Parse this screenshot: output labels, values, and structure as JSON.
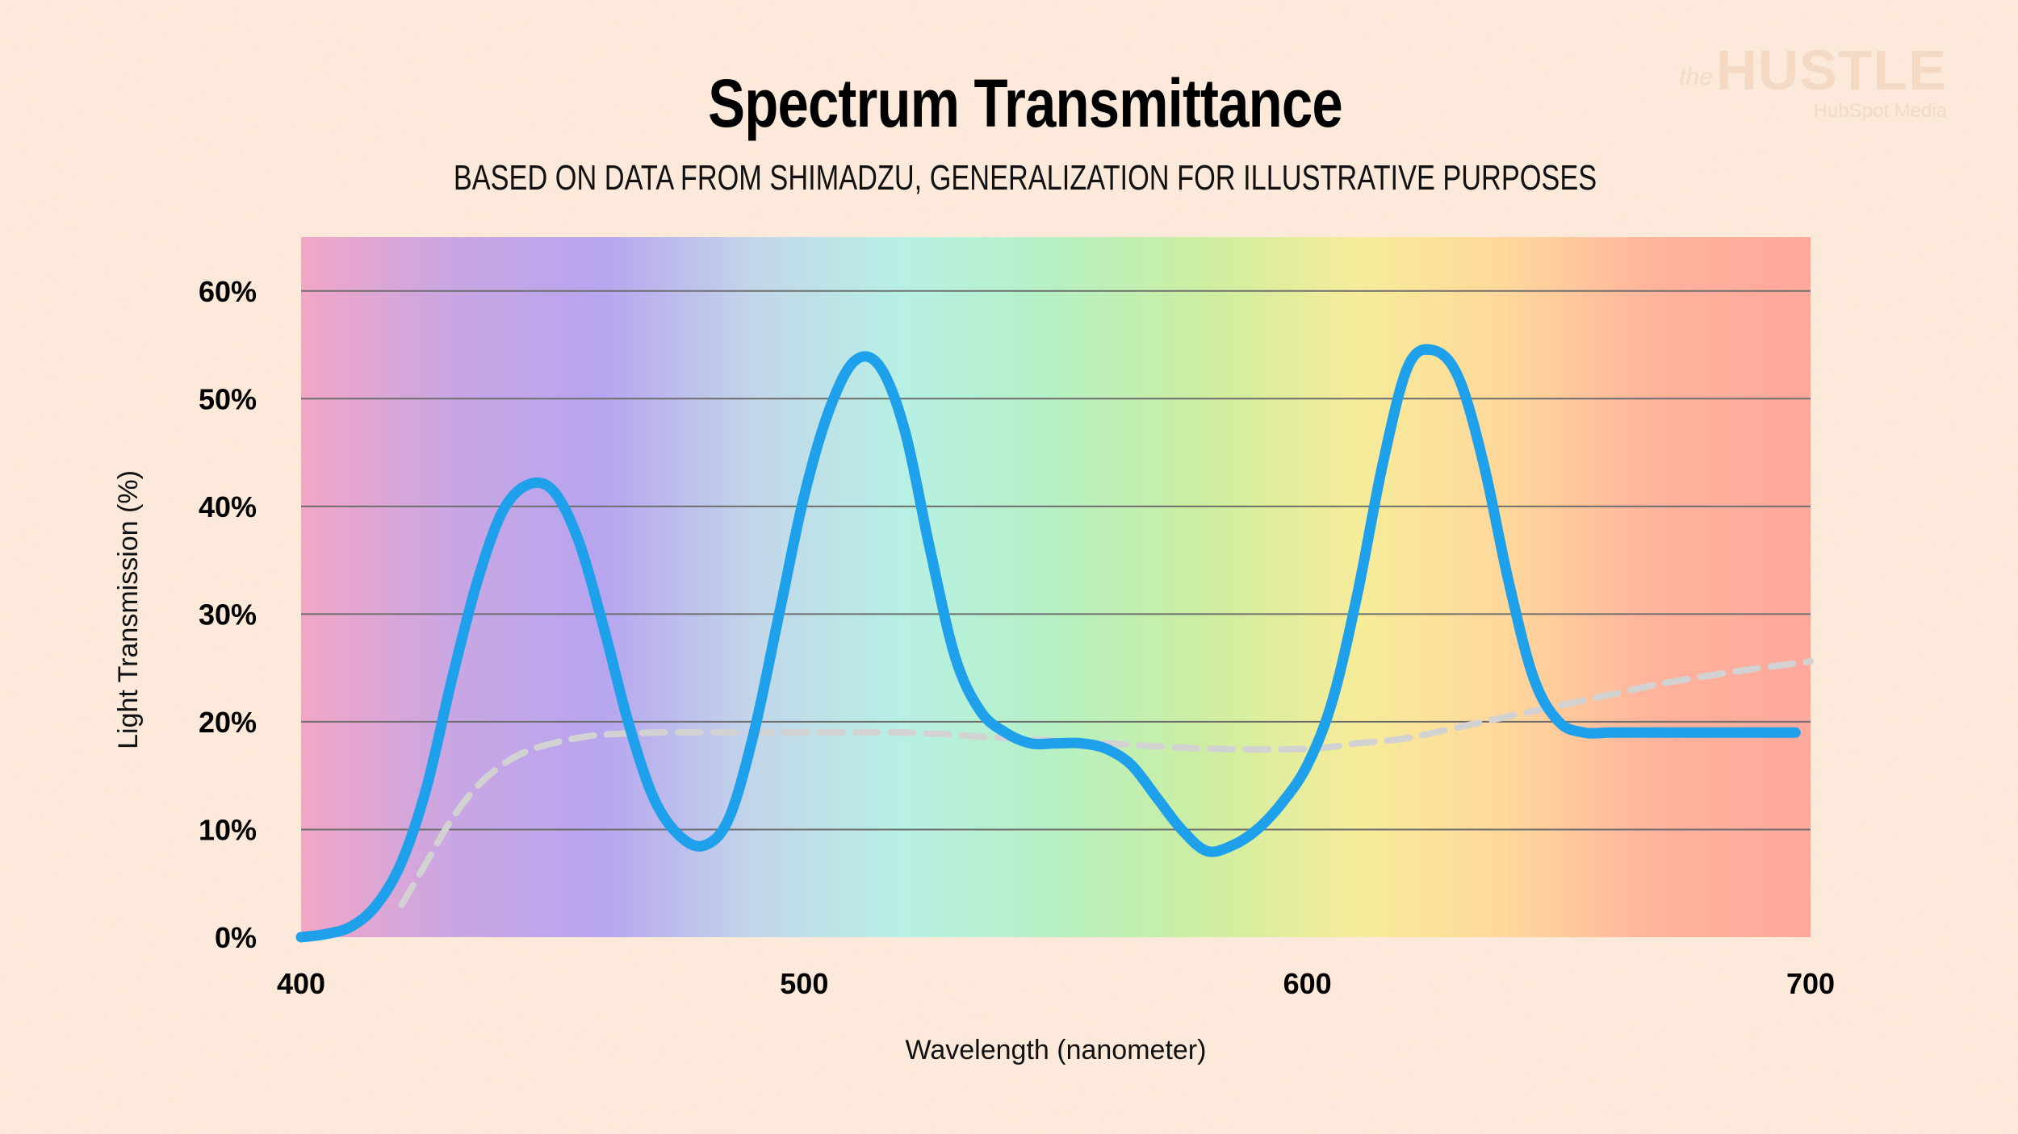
{
  "header": {
    "title": "Spectrum Transmittance",
    "subtitle": "BASED ON DATA FROM SHIMADZU, GENERALIZATION FOR ILLUSTRATIVE PURPOSES"
  },
  "logo": {
    "the": "the",
    "name": "HUSTLE",
    "tagline": "HubSpot Media"
  },
  "colors": {
    "page_background": "#fbe8d8",
    "solid_line": "#1fa0ea",
    "dashed_line": "#d2d2d2",
    "gridline": "#6e6e6e",
    "spectrum": [
      "#f2a6c6",
      "#c9a6e3",
      "#b7a5ef",
      "#c2d6ea",
      "#b7f0e4",
      "#b6f0c2",
      "#cdeea0",
      "#f6ec9a",
      "#ffd79b",
      "#ffb29c",
      "#ffa89c"
    ]
  },
  "chart_data": {
    "type": "line",
    "title": "Spectrum Transmittance",
    "subtitle": "BASED ON DATA FROM SHIMADZU, GENERALIZATION FOR ILLUSTRATIVE PURPOSES",
    "xlabel": "Wavelength (nanometer)",
    "ylabel": "Light Transmission (%)",
    "xlim": [
      400,
      700
    ],
    "ylim": [
      0,
      65
    ],
    "x_ticks": [
      400,
      500,
      600,
      700
    ],
    "y_ticks": [
      0,
      10,
      20,
      30,
      40,
      50,
      60
    ],
    "y_tick_labels": [
      "0%",
      "10%",
      "20%",
      "30%",
      "40%",
      "50%",
      "60%"
    ],
    "grid": "horizontal",
    "legend": "none",
    "series": [
      {
        "style": "solid",
        "color": "#1fa0ea",
        "x": [
          400,
          405,
          410,
          415,
          420,
          425,
          430,
          435,
          440,
          445,
          450,
          455,
          460,
          465,
          470,
          475,
          480,
          485,
          490,
          495,
          500,
          505,
          510,
          515,
          520,
          525,
          530,
          535,
          540,
          545,
          550,
          555,
          560,
          565,
          570,
          575,
          580,
          585,
          590,
          595,
          600,
          605,
          610,
          615,
          620,
          625,
          630,
          635,
          640,
          645,
          650,
          655,
          660,
          665,
          670,
          680,
          690,
          697
        ],
        "y": [
          0,
          0.3,
          1,
          3,
          7,
          14,
          24,
          33,
          39.5,
          42,
          41.5,
          37,
          29,
          20,
          13,
          9.5,
          8.5,
          11,
          19,
          30,
          41,
          49,
          53.5,
          53,
          47,
          36,
          26,
          21,
          19,
          18,
          18,
          18,
          17.5,
          16,
          13,
          10,
          8,
          8.5,
          10,
          12.5,
          16,
          22,
          32,
          44,
          53,
          54.5,
          52,
          44,
          33,
          24,
          20,
          19,
          19,
          19,
          19,
          19,
          19,
          19
        ]
      },
      {
        "style": "dashed",
        "color": "#d2d2d2",
        "x": [
          420,
          425,
          430,
          435,
          440,
          445,
          450,
          455,
          460,
          470,
          480,
          490,
          500,
          520,
          540,
          560,
          580,
          600,
          610,
          620,
          630,
          640,
          650,
          660,
          670,
          680,
          690,
          700
        ],
        "y": [
          3,
          7,
          11,
          14,
          16,
          17.3,
          18,
          18.5,
          18.8,
          19,
          19,
          19,
          19,
          19,
          18.5,
          18,
          17.5,
          17.5,
          18,
          18.5,
          19.5,
          20.5,
          21.5,
          22.5,
          23.5,
          24.3,
          25,
          25.6
        ]
      }
    ]
  }
}
